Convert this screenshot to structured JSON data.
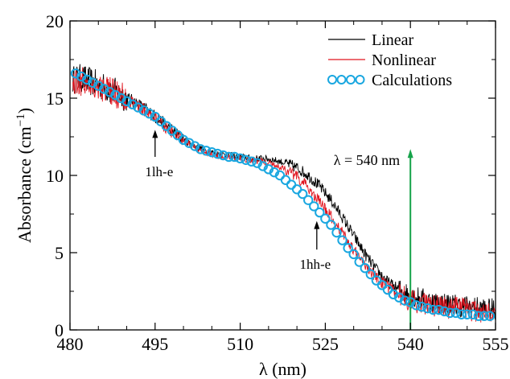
{
  "chart_data": {
    "type": "line",
    "xlabel": "λ  (nm)",
    "ylabel": "Absorbance  (cm",
    "ylabel_sup": "−1",
    "ylabel_close": ")",
    "xlim": [
      480,
      555
    ],
    "ylim": [
      0,
      20
    ],
    "xticks": [
      480,
      495,
      510,
      525,
      540,
      555
    ],
    "yticks": [
      0,
      5,
      10,
      15,
      20
    ],
    "grid": false,
    "legend_position": "top-right",
    "series": [
      {
        "name": "Linear",
        "style": "noisy-line",
        "color": "#000000",
        "x": [
          480.5,
          482,
          484,
          486,
          488,
          490,
          492,
          494,
          496,
          498,
          500,
          502,
          504,
          506,
          508,
          510,
          512,
          514,
          516,
          518,
          520,
          522,
          524,
          526,
          528,
          530,
          532,
          534,
          536,
          538,
          540,
          542,
          544,
          546,
          548,
          550,
          552,
          554,
          555
        ],
        "values": [
          16.2,
          16.3,
          16.0,
          15.7,
          15.4,
          15.0,
          14.6,
          14.1,
          13.5,
          12.9,
          12.3,
          11.9,
          11.6,
          11.4,
          11.3,
          11.2,
          11.1,
          11.1,
          11.0,
          10.8,
          10.5,
          10.0,
          9.3,
          8.4,
          7.3,
          6.1,
          4.9,
          3.9,
          3.1,
          2.6,
          2.2,
          2.0,
          1.8,
          1.7,
          1.6,
          1.5,
          1.4,
          1.3,
          1.3
        ]
      },
      {
        "name": "Nonlinear",
        "style": "noisy-line",
        "color": "#e0141e",
        "x": [
          480.5,
          482,
          484,
          486,
          488,
          490,
          492,
          494,
          496,
          498,
          500,
          502,
          504,
          506,
          508,
          510,
          512,
          514,
          516,
          518,
          520,
          522,
          524,
          526,
          528,
          530,
          532,
          534,
          536,
          538,
          540,
          542,
          544,
          546,
          548,
          550,
          552,
          554,
          555
        ],
        "values": [
          16.0,
          16.1,
          15.9,
          15.6,
          15.3,
          14.9,
          14.5,
          14.0,
          13.4,
          12.8,
          12.2,
          11.8,
          11.5,
          11.3,
          11.2,
          11.1,
          11.0,
          10.9,
          10.7,
          10.4,
          9.9,
          9.2,
          8.3,
          7.3,
          6.3,
          5.2,
          4.2,
          3.4,
          2.8,
          2.3,
          1.9,
          1.7,
          1.6,
          1.5,
          1.4,
          1.3,
          1.2,
          1.1,
          1.1
        ]
      },
      {
        "name": "Calculations",
        "style": "open-circles",
        "color": "#1aa7e0",
        "x": [
          481,
          482,
          483,
          484,
          485,
          486,
          487,
          488,
          489,
          490,
          491,
          492,
          493,
          494,
          495,
          496,
          497,
          498,
          499,
          500,
          501,
          502,
          503,
          504,
          505,
          506,
          507,
          508,
          509,
          510,
          511,
          512,
          513,
          514,
          515,
          516,
          517,
          518,
          519,
          520,
          521,
          522,
          523,
          524,
          525,
          526,
          527,
          528,
          529,
          530,
          531,
          532,
          533,
          534,
          535,
          536,
          537,
          538,
          539,
          540,
          541,
          542,
          543,
          544,
          545,
          546,
          547,
          548,
          549,
          550,
          551,
          552,
          553,
          554
        ],
        "values": [
          16.6,
          16.4,
          16.2,
          16.0,
          15.8,
          15.6,
          15.4,
          15.2,
          15.0,
          14.8,
          14.6,
          14.4,
          14.2,
          14.0,
          13.8,
          13.5,
          13.2,
          12.9,
          12.6,
          12.3,
          12.1,
          11.9,
          11.7,
          11.6,
          11.5,
          11.4,
          11.3,
          11.2,
          11.2,
          11.1,
          11.0,
          10.9,
          10.8,
          10.6,
          10.4,
          10.2,
          10.0,
          9.7,
          9.4,
          9.1,
          8.8,
          8.4,
          8.0,
          7.6,
          7.2,
          6.8,
          6.3,
          5.8,
          5.3,
          4.9,
          4.4,
          4.0,
          3.6,
          3.2,
          2.9,
          2.6,
          2.3,
          2.1,
          1.9,
          1.8,
          1.6,
          1.5,
          1.4,
          1.3,
          1.3,
          1.2,
          1.1,
          1.1,
          1.0,
          1.0,
          1.0,
          0.9,
          0.9,
          0.9
        ]
      }
    ],
    "annotations": [
      {
        "text": "1lh-e",
        "x": 495,
        "y_tip": 12.9,
        "y_tail": 11.2
      },
      {
        "text": "1hh-e",
        "x": 523.5,
        "y_tip": 7.0,
        "y_tail": 5.2
      }
    ],
    "marker_line": {
      "label": "λ = 540 nm",
      "x": 540,
      "y_top": 11.5,
      "color": "#16a34a"
    }
  }
}
